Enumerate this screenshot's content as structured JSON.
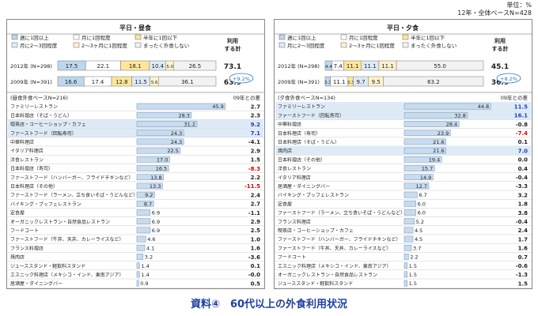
{
  "header": {
    "unit": "単位：%",
    "base": "12年・全体ベースN=428"
  },
  "caption": "資料④　60代以上の外食利用状況",
  "chart_data": [
    {
      "type": "bar",
      "title": "平日・昼食",
      "legend": [
        "週に1回以上",
        "月に1回程度",
        "半年に1回以下",
        "月に2～3回程度",
        "2～3ヶ月に1回程度",
        "まったく外食しない"
      ],
      "total_label": "利用する計",
      "stacked": [
        {
          "label": "2012年 (N=298)",
          "values": [
            17.5,
            22.1,
            18.1,
            10.4,
            5.0,
            26.5
          ],
          "labels": [
            "17.5",
            "22.1",
            "18.1",
            "10.4",
            "5.0",
            "26.5"
          ],
          "total": "73.1"
        },
        {
          "label": "2009年 (N=391)",
          "values": [
            16.6,
            17.4,
            12.8,
            11.5,
            5.6,
            36.1
          ],
          "labels": [
            "16.6",
            "17.4",
            "12.8",
            "11.5",
            "5.6",
            "36.1"
          ],
          "total": "63.9"
        }
      ],
      "diff_badge": "+9.2%",
      "base_label": "(昼食外食ベースN=216)",
      "diff_header": "09年との差",
      "categories": [
        "ファミリーレストラン",
        "日本料理店（そば・うどん）",
        "喫茶店・コーヒーショップ・カフェ",
        "ファーストフード（回転寿司）",
        "中華料理店",
        "イタリア料理店",
        "洋食レストラン",
        "日本料理店（寿司）",
        "ファーストフード（ハンバーガー、フライドチキンなど）",
        "日本料理店（その他）",
        "ファーストフード（ラーメン、立ち食いそば・うどんなど）",
        "バイキング・ブッフェレストラン",
        "定食屋",
        "オーガニックレストラン・自然食品レストラン",
        "フードコート",
        "ファーストフード（牛丼、天丼、カレーライスなど）",
        "フランス料理店",
        "焼肉店",
        "ジューススタンド・軽飲料スタンド",
        "エスニック料理店（メキシコ・インド、東南アジア）",
        "居酒屋・ダイニングバー"
      ],
      "values": [
        45.9,
        28.3,
        31.2,
        24.3,
        24.3,
        22.5,
        17.0,
        16.5,
        13.8,
        13.3,
        9.2,
        8.7,
        6.9,
        6.9,
        6.9,
        4.6,
        4.1,
        3.2,
        1.4,
        1.4,
        0.9
      ],
      "diffs": [
        "2.7",
        "2.3",
        "9.2",
        "7.1",
        "-4.1",
        "2.9",
        "1.5",
        "-8.3",
        "2.2",
        "-11.5",
        "2.4",
        "2.7",
        "-1.1",
        "2.9",
        "2.5",
        "1.0",
        "1.6",
        "-3.6",
        "0.1",
        "-0.0",
        "0.5"
      ],
      "highlight_rows": [
        2,
        3
      ],
      "xlim": [
        0,
        55
      ]
    },
    {
      "type": "bar",
      "title": "平日・夕食",
      "legend": [
        "週に1回以上",
        "月に1回程度",
        "半年に1回以下",
        "月に2～3回程度",
        "2～3ヶ月に1回程度",
        "まったく外食しない"
      ],
      "total_label": "利用する計",
      "stacked": [
        {
          "label": "2012年 (N=298)",
          "values": [
            4.4,
            7.4,
            11.1,
            11.1,
            11.1,
            55.0
          ],
          "labels": [
            "4.4",
            "7.4",
            "11.1",
            "11.1",
            "11.1",
            "55.0"
          ],
          "total": "45.1"
        },
        {
          "label": "2009年 (N=391)",
          "values": [
            3.3,
            11.1,
            3.3,
            9.7,
            9.5,
            63.2
          ],
          "labels": [
            "3.3",
            "11.1",
            "3.3",
            "9.7",
            "9.5",
            "63.2"
          ],
          "total": "36.9"
        }
      ],
      "diff_badge": "+8.2%",
      "base_label": "(夕食外食ベースN=134)",
      "diff_header": "09年との差",
      "categories": [
        "ファミリーレストラン",
        "ファーストフード（回転寿司）",
        "中華料理店",
        "日本料理店（寿司）",
        "日本料理店（そば・うどん）",
        "焼肉店",
        "日本料理店（その他）",
        "洋食レストラン",
        "イタリア料理店",
        "居酒屋・ダイニングバー",
        "バイキング・ブッフェレストラン",
        "定食屋",
        "ファーストフード（ラーメン、立ち食いそば・うどんなど）",
        "フランス料理店",
        "喫茶店・コーヒーショップ・カフェ",
        "ファーストフード（ハンバーガー、フライドチキンなど）",
        "ファーストフード（牛丼、天丼、カレーライスなど）",
        "フードコート",
        "エスニック料理店（メキシコ・インド、東南アジア）",
        "オーガニックレストラン・自然食品レストラン",
        "ジューススタンド・軽飲料スタンド"
      ],
      "values": [
        44.8,
        32.8,
        28.4,
        23.9,
        21.6,
        21.6,
        19.4,
        15.7,
        14.9,
        12.7,
        6.7,
        6.0,
        6.0,
        5.2,
        4.5,
        4.5,
        3.7,
        2.2,
        1.5,
        1.5,
        1.5
      ],
      "diffs": [
        "11.5",
        "16.1",
        "-0.8",
        "-7.4",
        "0.1",
        "7.0",
        "0.0",
        "0.4",
        "-0.4",
        "-3.3",
        "3.2",
        "1.8",
        "3.8",
        "-0.4",
        "2.4",
        "1.7",
        "1.6",
        "0.7",
        "-0.6",
        "-1.3",
        "1.5"
      ],
      "highlight_rows": [
        0,
        1,
        5
      ],
      "xlim": [
        0,
        55
      ]
    }
  ]
}
